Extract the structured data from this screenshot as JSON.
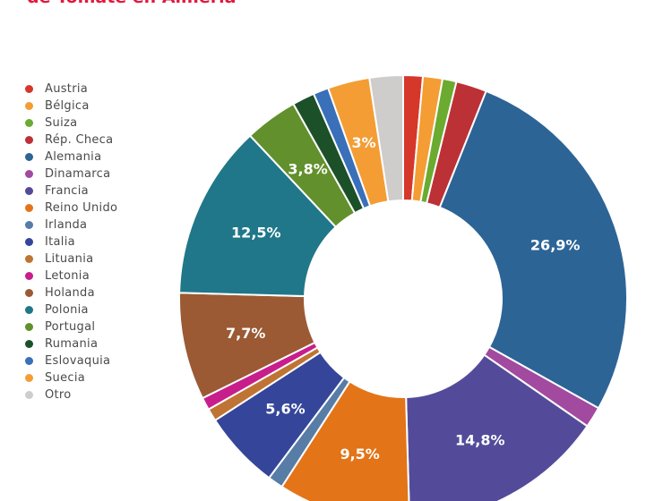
{
  "chart_data": {
    "type": "pie",
    "title": "de Tomate en Almería",
    "legend_position": "left",
    "slices": [
      {
        "name": "Austria",
        "value": 1.4,
        "color": "#d6372b",
        "label": ""
      },
      {
        "name": "Bélgica",
        "value": 1.4,
        "color": "#f49d34",
        "label": ""
      },
      {
        "name": "Suiza",
        "value": 1.0,
        "color": "#6aab30",
        "label": ""
      },
      {
        "name": "Rép. Checa",
        "value": 2.2,
        "color": "#bc3136",
        "label": ""
      },
      {
        "name": "Alemania",
        "value": 26.9,
        "color": "#2d6496",
        "label": "26,9%"
      },
      {
        "name": "Dinamarca",
        "value": 1.5,
        "color": "#a14aa0",
        "label": ""
      },
      {
        "name": "Francia",
        "value": 14.8,
        "color": "#534b9a",
        "label": "14,8%"
      },
      {
        "name": "Reino Unido",
        "value": 9.5,
        "color": "#e37418",
        "label": "9,5%"
      },
      {
        "name": "Irlanda",
        "value": 1.1,
        "color": "#577ca6",
        "label": ""
      },
      {
        "name": "Italia",
        "value": 5.6,
        "color": "#35469a",
        "label": "5,6%"
      },
      {
        "name": "Lituania",
        "value": 0.9,
        "color": "#bf7433",
        "label": ""
      },
      {
        "name": "Letonia",
        "value": 0.9,
        "color": "#c71e8c",
        "label": ""
      },
      {
        "name": "Holanda",
        "value": 7.7,
        "color": "#9b5a33",
        "label": "7,7%"
      },
      {
        "name": "Polonia",
        "value": 12.5,
        "color": "#207789",
        "label": "12,5%"
      },
      {
        "name": "Portugal",
        "value": 3.8,
        "color": "#62902c",
        "label": "3,8%"
      },
      {
        "name": "Rumania",
        "value": 1.6,
        "color": "#1c5029",
        "label": ""
      },
      {
        "name": "Eslovaquia",
        "value": 1.1,
        "color": "#3a6fb9",
        "label": ""
      },
      {
        "name": "Suecia",
        "value": 3.0,
        "color": "#f49d34",
        "label": "3%"
      },
      {
        "name": "Otro",
        "value": 2.4,
        "color": "#cfcccc",
        "label": ""
      }
    ]
  }
}
